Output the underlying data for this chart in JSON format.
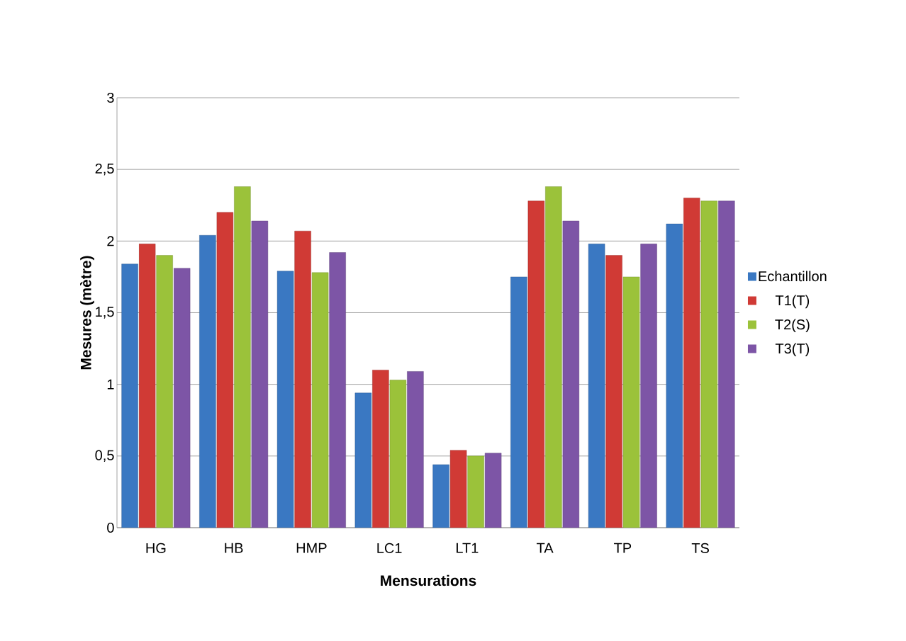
{
  "chart_data": {
    "type": "bar",
    "xlabel": "Mensurations",
    "ylabel": "Mesures (mètre)",
    "categories": [
      "HG",
      "HB",
      "HMP",
      "LC1",
      "LT1",
      "TA",
      "TP",
      "TS"
    ],
    "series": [
      {
        "name": "Echantillon",
        "color": "#3a78c2",
        "values": [
          1.84,
          2.04,
          1.79,
          0.94,
          0.44,
          1.75,
          1.98,
          2.12
        ]
      },
      {
        "name": "T1(T)",
        "color": "#d03a35",
        "values": [
          1.98,
          2.2,
          2.07,
          1.1,
          0.54,
          2.28,
          1.9,
          2.3
        ]
      },
      {
        "name": "T2(S)",
        "color": "#9bc23a",
        "values": [
          1.9,
          2.38,
          1.78,
          1.03,
          0.5,
          2.38,
          1.75,
          2.28
        ]
      },
      {
        "name": "T3(T)",
        "color": "#7d55a6",
        "values": [
          1.81,
          2.14,
          1.92,
          1.09,
          0.52,
          2.14,
          1.98,
          2.28
        ]
      }
    ],
    "ylim": [
      0,
      3
    ],
    "yticks": [
      0,
      {
        "value": 0.5,
        "label": "0,5"
      },
      1,
      {
        "value": 1.5,
        "label": "1,5"
      },
      2,
      {
        "value": 2.5,
        "label": "2,5"
      },
      3
    ],
    "grid": "y",
    "legend": "right"
  }
}
